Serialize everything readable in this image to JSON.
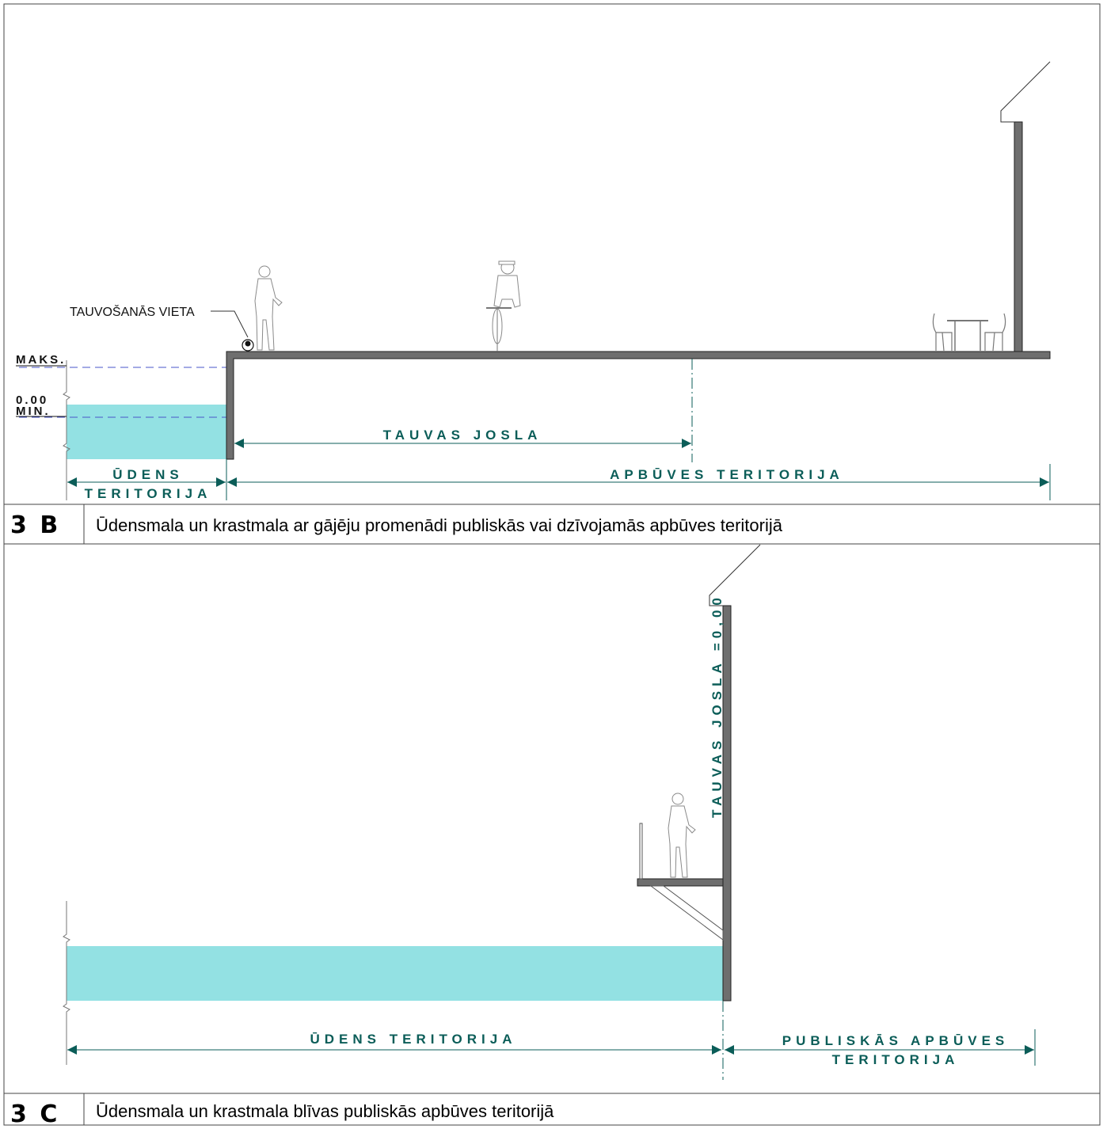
{
  "colors": {
    "water": "#93e1e3",
    "structure": "#6e6e6e",
    "dimension": "#0b5d58",
    "level_line": "#4a55c8"
  },
  "section_b": {
    "code": "3 B",
    "title": "Ūdensmala un krastmala ar gājēju promenādi publiskās vai dzīvojamās apbūves teritorijā",
    "mooring_label": "TAUVOŠANĀS VIETA",
    "level_max": "MAKS.",
    "level_zero": "0.00",
    "level_min": "MIN.",
    "towpath_label": "TAUVAS JOSLA",
    "water_zone_line1": "ŪDENS",
    "water_zone_line2": "TERITORIJA",
    "building_zone": "APBŪVES TERITORIJA"
  },
  "section_c": {
    "code": "3 C",
    "title": "Ūdensmala un krastmala blīvas publiskās apbūves teritorijā",
    "towpath_label": "TAUVAS JOSLA =0,00",
    "water_zone": "ŪDENS TERITORIJA",
    "public_zone_line1": "PUBLISKĀS APBŪVES",
    "public_zone_line2": "TERITORIJA"
  }
}
